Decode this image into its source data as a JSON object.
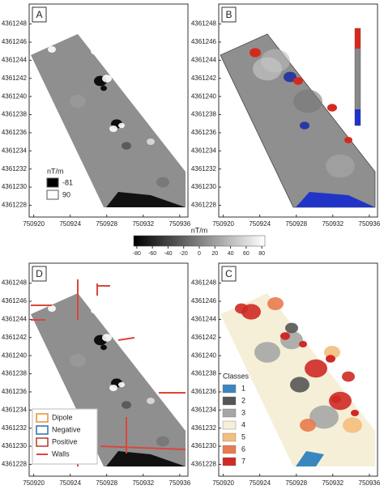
{
  "figure": {
    "x_axis": {
      "xlim": [
        750919.5,
        750936.9
      ],
      "xticks": [
        750920,
        750924,
        750928,
        750932,
        750936
      ]
    },
    "y_axis": {
      "ylim": [
        4361226.7,
        4361250.2
      ],
      "yticks": [
        4361228,
        4361230,
        4361232,
        4361234,
        4361236,
        4361238,
        4361240,
        4361242,
        4361244,
        4361246,
        4361248
      ]
    },
    "panels": [
      {
        "label": "A"
      },
      {
        "label": "B"
      },
      {
        "label": "D"
      },
      {
        "label": "C"
      }
    ],
    "legend_a": {
      "title": "nT/m",
      "entries": [
        {
          "label": -81,
          "color": "#000000"
        },
        {
          "label": 90,
          "color": "#ffffff"
        }
      ]
    },
    "colorbar": {
      "title": "nT/m",
      "range": [
        -84,
        84
      ],
      "ticks": [
        -80,
        -60,
        -40,
        -20,
        0,
        20,
        40,
        60,
        80
      ]
    },
    "legend_d": {
      "entries": [
        {
          "label": "Dipole",
          "color": "#e8902a"
        },
        {
          "label": "Negative",
          "color": "#2a6fb0"
        },
        {
          "label": "Positive",
          "color": "#b03a22"
        },
        {
          "label": "Walls",
          "color": "#d9473d"
        }
      ]
    },
    "legend_c": {
      "title": "Classes",
      "entries": [
        {
          "label": 1,
          "color": "#3a86c0"
        },
        {
          "label": 2,
          "color": "#555555"
        },
        {
          "label": 3,
          "color": "#a6a6a6"
        },
        {
          "label": 4,
          "color": "#f6efd8"
        },
        {
          "label": 5,
          "color": "#f4be7c"
        },
        {
          "label": 6,
          "color": "#ea7a4e"
        },
        {
          "label": 7,
          "color": "#cf2a25"
        }
      ]
    }
  }
}
